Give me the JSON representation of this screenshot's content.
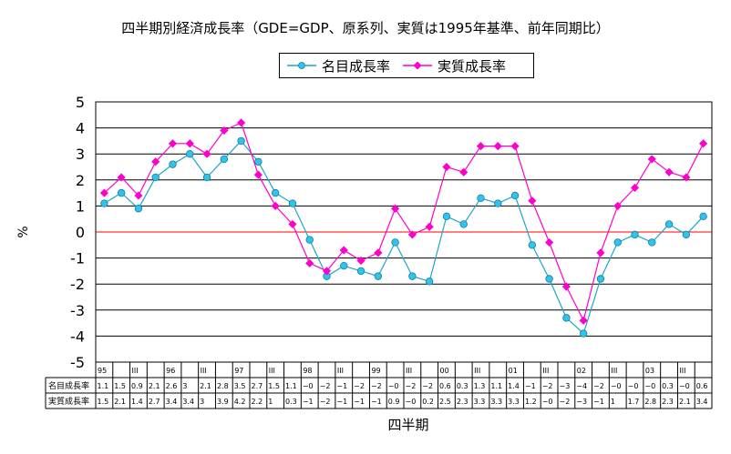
{
  "chart_data": {
    "type": "line",
    "title": "四半期別経済成長率（GDE=GDP、原系列、実質は1995年基準、前年同期比）",
    "xlabel": "四半期",
    "ylabel": "%",
    "ylim": [
      -5,
      5
    ],
    "yticks": [
      "5",
      "4",
      "3",
      "2",
      "1",
      "0",
      "-1",
      "-2",
      "-3",
      "-4",
      "-5"
    ],
    "grid": true,
    "legend": "top-center",
    "x_labels": [
      "95",
      "",
      "III",
      "",
      "96",
      "",
      "III",
      "",
      "97",
      "",
      "III",
      "",
      "98",
      "",
      "III",
      "",
      "99",
      "",
      "III",
      "",
      "00",
      "",
      "III",
      "",
      "01",
      "",
      "III",
      "",
      "02",
      "",
      "III",
      "",
      "03",
      "",
      "III",
      ""
    ],
    "series": [
      {
        "name": "名目成長率",
        "color": "#1fa5c8",
        "marker": "circle",
        "values": [
          1.1,
          1.5,
          0.9,
          2.1,
          2.6,
          3.0,
          2.1,
          2.8,
          3.5,
          2.7,
          1.5,
          1.1,
          -0.3,
          -1.7,
          -1.3,
          -1.5,
          -1.7,
          -0.4,
          -1.7,
          -1.9,
          0.6,
          0.3,
          1.3,
          1.1,
          1.4,
          -0.5,
          -1.8,
          -3.3,
          -3.9,
          -1.8,
          -0.4,
          -0.1,
          -0.4,
          0.3,
          -0.1,
          0.6
        ],
        "table_labels": [
          "1.1",
          "1.5",
          "0.9",
          "2.1",
          "2.6",
          "3",
          "2.1",
          "2.8",
          "3.5",
          "2.7",
          "1.5",
          "1.1",
          "−0",
          "−2",
          "−1",
          "−2",
          "−2",
          "−0",
          "−2",
          "−2",
          "0.6",
          "0.3",
          "1.3",
          "1.1",
          "1.4",
          "−1",
          "−2",
          "−3",
          "−4",
          "−2",
          "−0",
          "−0",
          "−0",
          "0.3",
          "−0",
          "0.6"
        ]
      },
      {
        "name": "実質成長率",
        "color": "#ff00cc",
        "marker": "diamond",
        "values": [
          1.5,
          2.1,
          1.4,
          2.7,
          3.4,
          3.4,
          3.0,
          3.9,
          4.2,
          2.2,
          1.0,
          0.3,
          -1.2,
          -1.5,
          -0.7,
          -1.1,
          -0.8,
          0.9,
          -0.1,
          0.2,
          2.5,
          2.3,
          3.3,
          3.3,
          3.3,
          1.2,
          -0.4,
          -2.1,
          -3.4,
          -0.8,
          1.0,
          1.7,
          2.8,
          2.3,
          2.1,
          3.4
        ],
        "table_labels": [
          "1.5",
          "2.1",
          "1.4",
          "2.7",
          "3.4",
          "3.4",
          "3",
          "3.9",
          "4.2",
          "2.2",
          "1",
          "0.3",
          "−1",
          "−2",
          "−1",
          "−1",
          "−1",
          "0.9",
          "−0",
          "0.2",
          "2.5",
          "2.3",
          "3.3",
          "3.3",
          "3.3",
          "1.2",
          "−0",
          "−2",
          "−3",
          "−1",
          "1",
          "1.7",
          "2.8",
          "2.3",
          "2.1",
          "3.4"
        ]
      }
    ],
    "colors": {
      "zero_line": "#ff0000",
      "grid": "#000000"
    }
  }
}
